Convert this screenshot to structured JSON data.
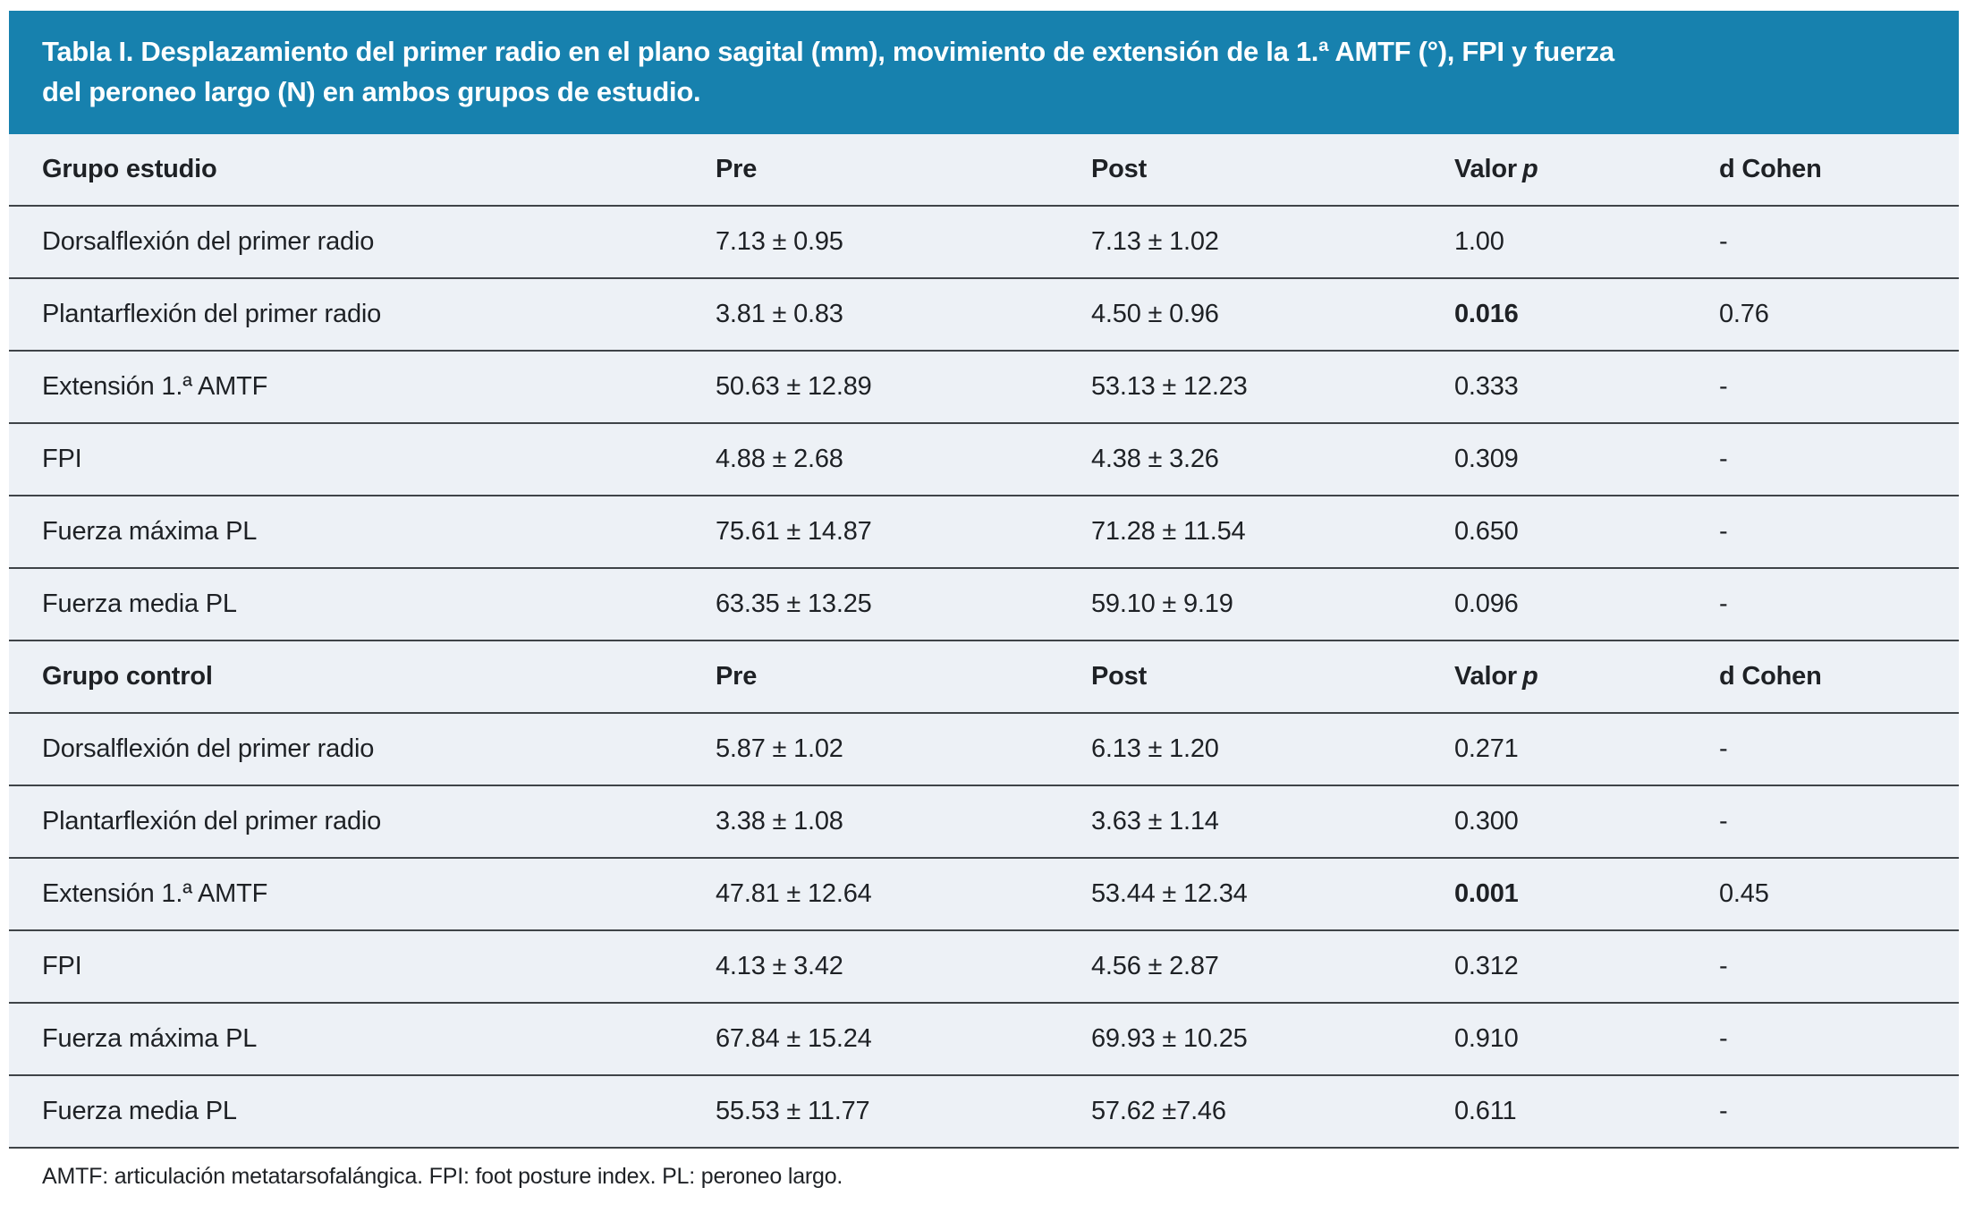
{
  "title": {
    "line1": "Tabla I. Desplazamiento del primer radio en el plano sagital (mm), movimiento de extensión de la 1.ª AMTF (°), FPI y fuerza",
    "line2": "del peroneo largo (N) en ambos grupos de estudio."
  },
  "colors": {
    "band_bg": "#1781ae",
    "row_bg": "#edf1f6",
    "separator": "#3f4448",
    "title_text": "#ffffff",
    "body_text": "#1e2125"
  },
  "table": {
    "header": {
      "pre": "Pre",
      "post": "Post",
      "valor_label": "Valor",
      "p_symbol": "p",
      "d_cohen": "d Cohen"
    },
    "groups": [
      {
        "label": "Grupo estudio",
        "rows": [
          {
            "name": "Dorsalflexión del primer radio",
            "pre": "7.13 ± 0.95",
            "post": "7.13 ± 1.02",
            "p": "1.00",
            "p_strong": false,
            "d": "-"
          },
          {
            "name": "Plantarflexión del primer radio",
            "pre": "3.81 ± 0.83",
            "post": "4.50 ± 0.96",
            "p": "0.016",
            "p_strong": true,
            "d": "0.76"
          },
          {
            "name": "Extensión 1.ª AMTF",
            "pre": "50.63 ± 12.89",
            "post": "53.13 ± 12.23",
            "p": "0.333",
            "p_strong": false,
            "d": "-"
          },
          {
            "name": "FPI",
            "pre": "4.88 ± 2.68",
            "post": "4.38 ± 3.26",
            "p": "0.309",
            "p_strong": false,
            "d": "-"
          },
          {
            "name": "Fuerza máxima PL",
            "pre": "75.61 ± 14.87",
            "post": "71.28 ± 11.54",
            "p": "0.650",
            "p_strong": false,
            "d": "-"
          },
          {
            "name": "Fuerza media PL",
            "pre": "63.35 ± 13.25",
            "post": "59.10 ± 9.19",
            "p": "0.096",
            "p_strong": false,
            "d": "-"
          }
        ]
      },
      {
        "label": "Grupo control",
        "rows": [
          {
            "name": "Dorsalflexión del primer radio",
            "pre": "5.87 ± 1.02",
            "post": "6.13 ± 1.20",
            "p": "0.271",
            "p_strong": false,
            "d": "-"
          },
          {
            "name": "Plantarflexión del primer radio",
            "pre": "3.38 ± 1.08",
            "post": "3.63 ± 1.14",
            "p": "0.300",
            "p_strong": false,
            "d": "-"
          },
          {
            "name": "Extensión 1.ª AMTF",
            "pre": "47.81 ± 12.64",
            "post": "53.44 ± 12.34",
            "p": "0.001",
            "p_strong": true,
            "d": "0.45"
          },
          {
            "name": "FPI",
            "pre": "4.13 ± 3.42",
            "post": "4.56 ± 2.87",
            "p": "0.312",
            "p_strong": false,
            "d": "-"
          },
          {
            "name": "Fuerza máxima PL",
            "pre": "67.84 ± 15.24",
            "post": "69.93 ± 10.25",
            "p": "0.910",
            "p_strong": false,
            "d": "-"
          },
          {
            "name": "Fuerza media PL",
            "pre": "55.53 ± 11.77",
            "post": "57.62 ±7.46",
            "p": "0.611",
            "p_strong": false,
            "d": "-"
          }
        ]
      }
    ]
  },
  "footnote": "AMTF: articulación metatarsofalángica. FPI: foot posture index. PL: peroneo largo."
}
